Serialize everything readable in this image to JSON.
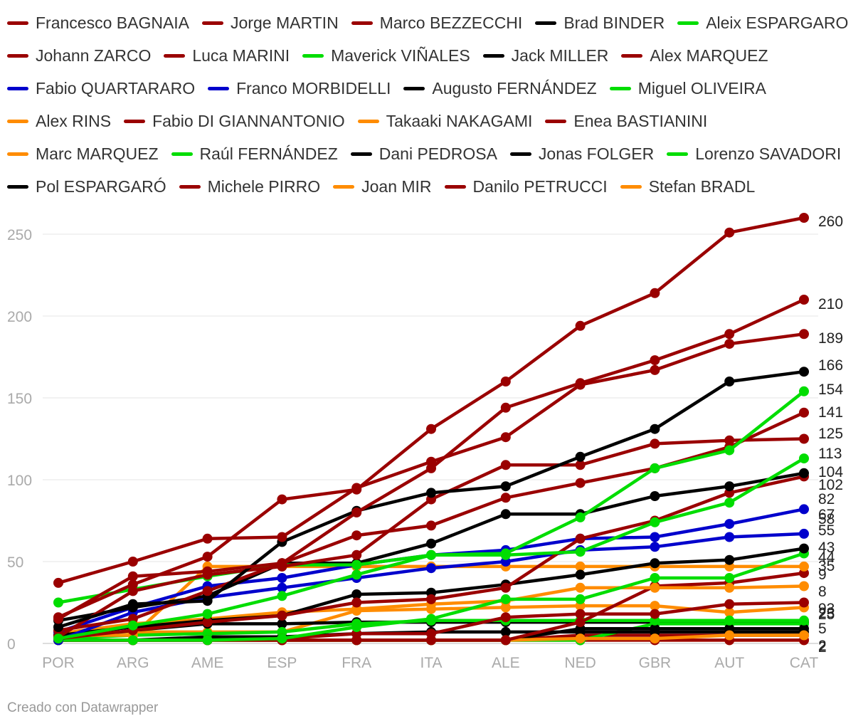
{
  "chart_data": {
    "type": "line",
    "title": "",
    "xlabel": "",
    "ylabel": "",
    "x": [
      "POR",
      "ARG",
      "AME",
      "ESP",
      "FRA",
      "ITA",
      "ALE",
      "NED",
      "GBR",
      "AUT",
      "CAT"
    ],
    "yticks": [
      0,
      50,
      100,
      150,
      200,
      250
    ],
    "ylim": [
      0,
      270
    ],
    "grid": "horizontal",
    "legend_position": "top",
    "end_labels": [
      260,
      210,
      189,
      166,
      154,
      141,
      125,
      113,
      104,
      102,
      82,
      67,
      58,
      55,
      43,
      44,
      35,
      9,
      8,
      93,
      23,
      25,
      5,
      2,
      2
    ],
    "series": [
      {
        "name": "Francesco BAGNAIA",
        "color": "#9a0000",
        "values": [
          16,
          36,
          53,
          88,
          94,
          131,
          160,
          194,
          214,
          251,
          260
        ]
      },
      {
        "name": "Jorge MARTIN",
        "color": "#9a0000",
        "values": [
          15,
          41,
          44,
          49,
          80,
          107,
          144,
          159,
          173,
          189,
          210
        ]
      },
      {
        "name": "Marco BEZZECCHI",
        "color": "#9a0000",
        "values": [
          37,
          50,
          64,
          65,
          95,
          111,
          126,
          158,
          167,
          183,
          189
        ]
      },
      {
        "name": "Brad BINDER",
        "color": "#000000",
        "values": [
          10,
          24,
          26,
          62,
          81,
          92,
          96,
          114,
          131,
          160,
          166
        ]
      },
      {
        "name": "Aleix ESPARGARO",
        "color": "#00dd00",
        "values": [
          3,
          11,
          18,
          29,
          42,
          54,
          55,
          77,
          107,
          118,
          154
        ]
      },
      {
        "name": "Johann ZARCO",
        "color": "#9a0000",
        "values": [
          8,
          15,
          32,
          49,
          66,
          72,
          89,
          98,
          107,
          120,
          141
        ]
      },
      {
        "name": "Luca MARINI",
        "color": "#9a0000",
        "values": [
          4,
          32,
          42,
          47,
          54,
          88,
          109,
          109,
          122,
          124,
          125
        ]
      },
      {
        "name": "Maverick VIÑALES",
        "color": "#00dd00",
        "values": [
          25,
          33,
          41,
          48,
          48,
          54,
          54,
          56,
          74,
          86,
          113
        ]
      },
      {
        "name": "Jack MILLER",
        "color": "#000000",
        "values": [
          14,
          22,
          29,
          49,
          49,
          61,
          79,
          79,
          90,
          96,
          104
        ]
      },
      {
        "name": "Alex MARQUEZ",
        "color": "#9a0000",
        "values": [
          3,
          8,
          13,
          17,
          25,
          27,
          34,
          64,
          75,
          92,
          102
        ]
      },
      {
        "name": "Fabio QUARTARARO",
        "color": "#0000cc",
        "values": [
          7,
          22,
          35,
          40,
          48,
          54,
          57,
          64,
          65,
          73,
          82
        ]
      },
      {
        "name": "Franco MORBIDELLI",
        "color": "#0000cc",
        "values": [
          2,
          19,
          28,
          34,
          40,
          46,
          50,
          57,
          59,
          65,
          67
        ]
      },
      {
        "name": "Augusto FERNÁNDEZ",
        "color": "#000000",
        "values": [
          5,
          10,
          14,
          17,
          30,
          31,
          36,
          42,
          49,
          51,
          58
        ]
      },
      {
        "name": "Miguel OLIVEIRA",
        "color": "#00dd00",
        "values": [
          2,
          2,
          2,
          3,
          10,
          15,
          27,
          27,
          40,
          40,
          55
        ]
      },
      {
        "name": "Alex RINS",
        "color": "#ff8c00",
        "values": [
          5,
          5,
          47,
          47,
          47,
          47,
          47,
          47,
          47,
          47,
          47
        ]
      },
      {
        "name": "Fabio DI GIANNANTONIO",
        "color": "#9a0000",
        "values": [
          2,
          2,
          2,
          3,
          6,
          6,
          16,
          18,
          18,
          24,
          25
        ]
      },
      {
        "name": "Takaaki NAKAGAMI",
        "color": "#ff8c00",
        "values": [
          6,
          12,
          15,
          19,
          21,
          24,
          26,
          34,
          34,
          34,
          35
        ]
      },
      {
        "name": "Enea BASTIANINI",
        "color": "#9a0000",
        "values": [
          2,
          2,
          2,
          2,
          2,
          2,
          2,
          13,
          35,
          37,
          43
        ]
      },
      {
        "name": "Marc MARQUEZ",
        "color": "#ff8c00",
        "values": [
          2,
          2,
          2,
          2,
          2,
          2,
          2,
          3,
          3,
          5,
          5
        ]
      },
      {
        "name": "Raúl FERNÁNDEZ",
        "color": "#00dd00",
        "values": [
          3,
          5,
          6,
          7,
          12,
          14,
          14,
          14,
          14,
          14,
          14
        ]
      },
      {
        "name": "Dani PEDROSA",
        "color": "#000000",
        "values": [
          2,
          2,
          2,
          2,
          2,
          2,
          2,
          9,
          9,
          9,
          9
        ]
      },
      {
        "name": "Jonas FOLGER",
        "color": "#000000",
        "values": [
          2,
          2,
          4,
          4,
          6,
          7,
          7,
          7,
          7,
          7,
          7
        ]
      },
      {
        "name": "Lorenzo SAVADORI",
        "color": "#00dd00",
        "values": [
          2,
          2,
          2,
          2,
          2,
          2,
          2,
          2,
          12,
          12,
          12
        ]
      },
      {
        "name": "Pol ESPARGARÓ",
        "color": "#000000",
        "values": [
          2,
          8,
          12,
          12,
          13,
          13,
          13,
          13,
          13,
          13,
          13
        ]
      },
      {
        "name": "Michele PIRRO",
        "color": "#9a0000",
        "values": [
          2,
          2,
          2,
          2,
          2,
          2,
          2,
          5,
          5,
          5,
          5
        ]
      },
      {
        "name": "Joan MIR",
        "color": "#ff8c00",
        "values": [
          7,
          7,
          7,
          7,
          20,
          21,
          22,
          23,
          23,
          19,
          22
        ]
      },
      {
        "name": "Danilo PETRUCCI",
        "color": "#9a0000",
        "values": [
          2,
          2,
          2,
          2,
          2,
          2,
          2,
          2,
          2,
          2,
          2
        ]
      },
      {
        "name": "Stefan BRADL",
        "color": "#ff8c00",
        "values": [
          2,
          2,
          2,
          2,
          2,
          2,
          2,
          2,
          2,
          2,
          2
        ]
      }
    ]
  },
  "footer": {
    "credit": "Creado con Datawrapper"
  }
}
